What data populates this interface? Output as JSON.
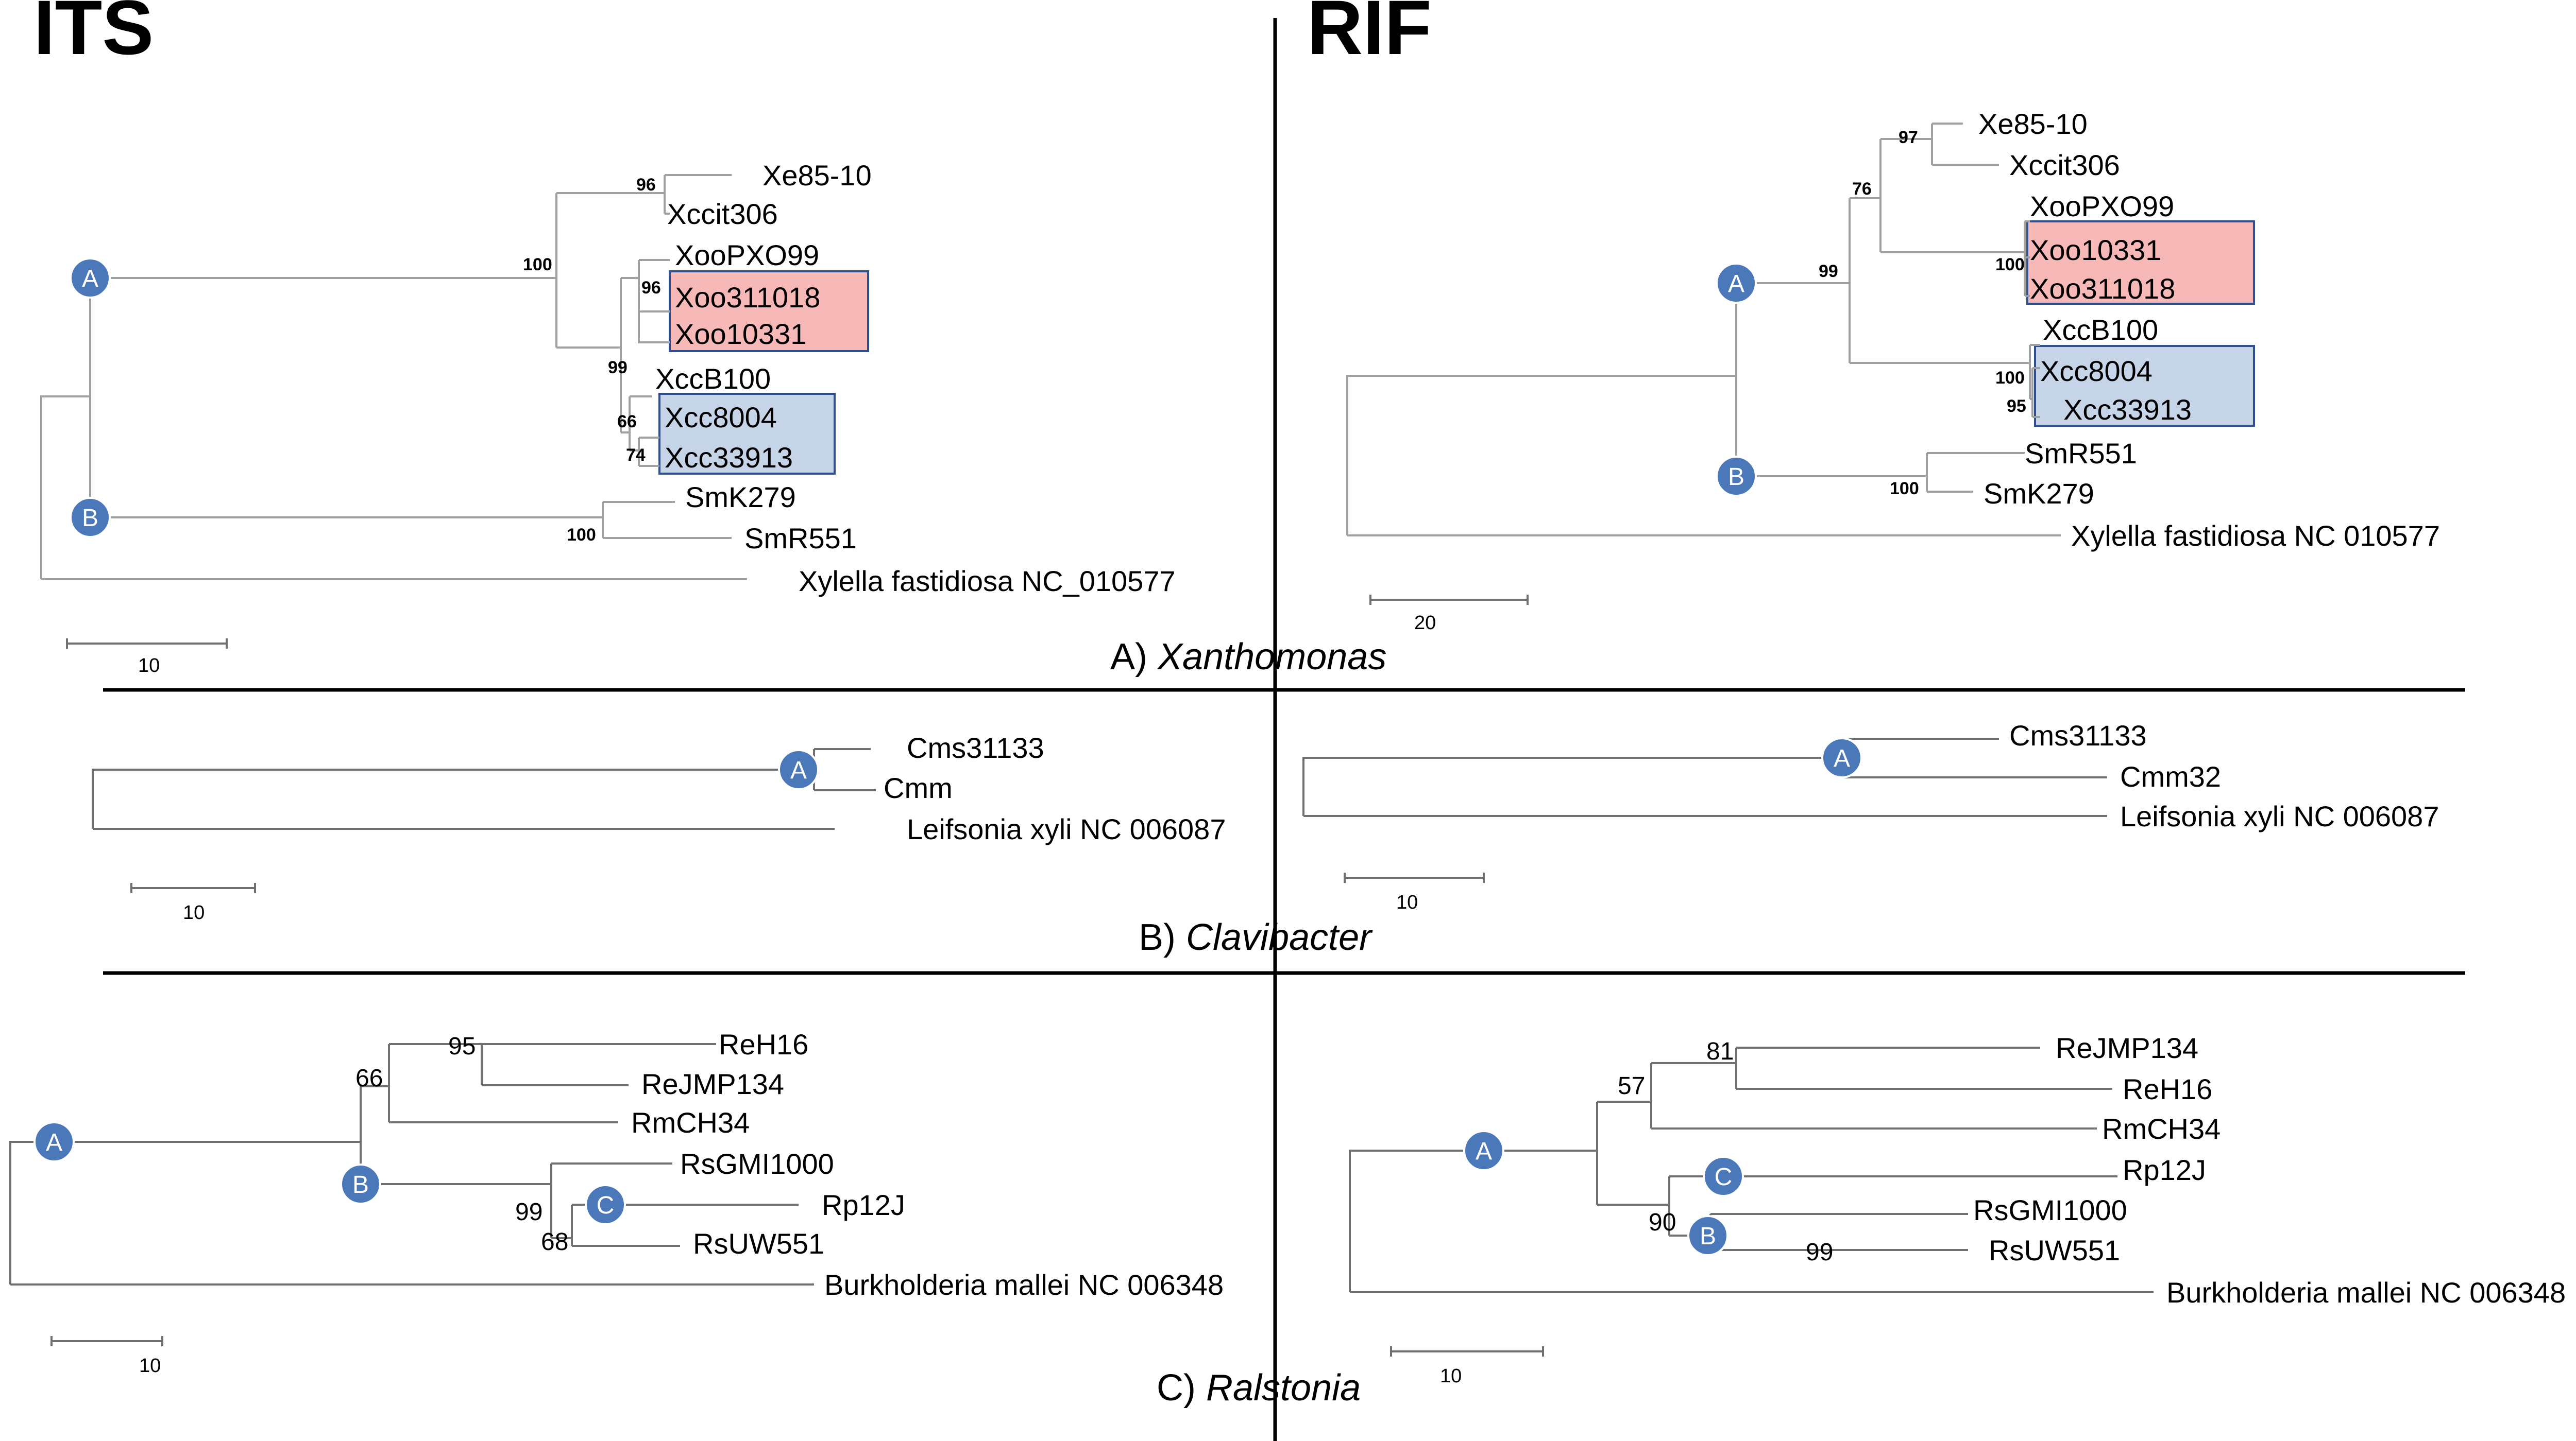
{
  "headers": {
    "left": "ITS",
    "right": "RIF"
  },
  "colors": {
    "red_box": "#f7b8b8",
    "blue_box": "#c6d4e8",
    "node": "#4a78b8",
    "box_border": "#2f4f8f"
  },
  "sections": {
    "xanthomonas": {
      "prefix": "A) ",
      "genus": "Xanthomonas"
    },
    "clavibacter": {
      "prefix": "B) ",
      "genus": "Clavibacter"
    },
    "ralstonia": {
      "prefix": "C) ",
      "genus": "Ralstonia"
    }
  },
  "nodes": {
    "a": "A",
    "b": "B",
    "c": "C"
  },
  "xan_its": {
    "taxa": [
      "Xe85-10",
      "Xccit306",
      "XooPXO99",
      "Xoo311018",
      "Xoo10331",
      "XccB100",
      "Xcc8004",
      "Xcc33913",
      "SmK279",
      "SmR551",
      "Xylella fastidiosa NC_010577"
    ],
    "support": [
      "96",
      "100",
      "96",
      "99",
      "66",
      "74",
      "100"
    ],
    "scale": "10"
  },
  "xan_rif": {
    "taxa": [
      "Xe85-10",
      "Xccit306",
      "XooPXO99",
      "Xoo10331",
      "Xoo311018",
      "XccB100",
      "Xcc8004",
      "Xcc33913",
      "SmR551",
      "SmK279",
      "Xylella fastidiosa NC 010577"
    ],
    "support": [
      "97",
      "76",
      "99",
      "100",
      "100",
      "95",
      "100"
    ],
    "scale": "20"
  },
  "cla_its": {
    "taxa": [
      "Cms31133",
      "Cmm",
      "Leifsonia xyli NC 006087"
    ],
    "scale": "10"
  },
  "cla_rif": {
    "taxa": [
      "Cms31133",
      "Cmm32",
      "Leifsonia xyli NC 006087"
    ],
    "scale": "10"
  },
  "ral_its": {
    "taxa": [
      "ReH16",
      "ReJMP134",
      "RmCH34",
      "RsGMI1000",
      "Rp12J",
      "RsUW551",
      "Burkholderia mallei NC 006348"
    ],
    "support": [
      "95",
      "66",
      "99",
      "68"
    ],
    "scale": "10"
  },
  "ral_rif": {
    "taxa": [
      "ReJMP134",
      "ReH16",
      "RmCH34",
      "Rp12J",
      "RsGMI1000",
      "RsUW551",
      "Burkholderia mallei NC 006348"
    ],
    "support": [
      "81",
      "57",
      "90",
      "99"
    ],
    "scale": "10"
  }
}
